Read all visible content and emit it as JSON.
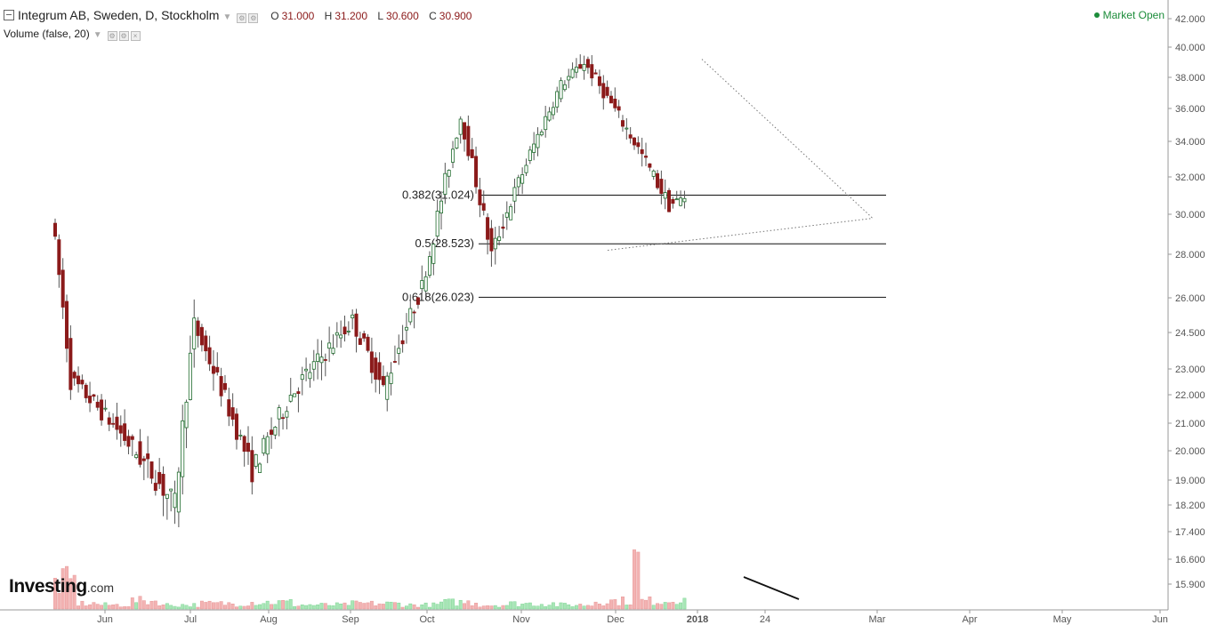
{
  "header": {
    "title": "Integrum AB, Sweden, D, Stockholm",
    "ohlc": [
      {
        "k": "O",
        "v": "31.000"
      },
      {
        "k": "H",
        "v": "31.200"
      },
      {
        "k": "L",
        "v": "30.600"
      },
      {
        "k": "C",
        "v": "30.900"
      }
    ],
    "volume_label": "Volume (false, 20)",
    "market_status": "Market Open",
    "colors": {
      "up": "#1e6b2c",
      "down": "#8b1a1a",
      "vol_up": "#a8e6b6",
      "vol_down": "#f3b3b3",
      "status": "#1c8c3a"
    }
  },
  "logo": {
    "name": "Investing",
    "suffix": ".com"
  },
  "chart_data": {
    "type": "candlestick",
    "x_ticks": [
      "Jun",
      "Jul",
      "Aug",
      "Sep",
      "Oct",
      "Nov",
      "Dec",
      "2018",
      "24",
      "Mar",
      "Apr",
      "May",
      "Jun"
    ],
    "y_ticks": [
      "42.000",
      "40.000",
      "38.000",
      "36.000",
      "34.000",
      "32.000",
      "30.000",
      "28.000",
      "26.000",
      "24.500",
      "23.000",
      "22.000",
      "21.000",
      "20.000",
      "19.000",
      "18.200",
      "17.400",
      "16.600",
      "15.900"
    ],
    "fib_levels": [
      {
        "label": "0.382(31.024)",
        "value": 31.024
      },
      {
        "label": "0.5(28.523)",
        "value": 28.523
      },
      {
        "label": "0.618(26.023)",
        "value": 26.023
      }
    ],
    "last_close": 30.9,
    "candle_segments": [
      [
        30.0,
        22.6,
        5,
        -0.35,
        0.9
      ],
      [
        22.6,
        20.8,
        12,
        -0.08,
        0.65
      ],
      [
        20.8,
        18.2,
        15,
        -0.2,
        0.8
      ],
      [
        18.2,
        24.8,
        5,
        0.3,
        0.9
      ],
      [
        24.8,
        19.3,
        15,
        -0.12,
        0.75
      ],
      [
        19.3,
        22.0,
        10,
        0.03,
        0.75
      ],
      [
        22.0,
        23.5,
        8,
        0.05,
        0.8
      ],
      [
        23.5,
        25.0,
        8,
        0.06,
        0.8
      ],
      [
        25.0,
        22.2,
        8,
        -0.05,
        0.8
      ],
      [
        22.2,
        26.5,
        10,
        0.04,
        0.8
      ],
      [
        26.5,
        28.0,
        2,
        0.5,
        0.6
      ],
      [
        28.0,
        35.5,
        8,
        0.1,
        0.95
      ],
      [
        35.5,
        28.0,
        8,
        -0.15,
        0.95
      ],
      [
        28.0,
        37.5,
        18,
        0.08,
        0.85
      ],
      [
        37.5,
        39.0,
        6,
        0.05,
        0.75
      ],
      [
        39.0,
        30.5,
        22,
        -0.05,
        0.85
      ],
      [
        30.5,
        30.9,
        4,
        0.01,
        0.6
      ]
    ],
    "volume_profile": [
      [
        6,
        40
      ],
      [
        6,
        8
      ],
      [
        8,
        6
      ],
      [
        8,
        12
      ],
      [
        10,
        6
      ],
      [
        12,
        8
      ],
      [
        12,
        10
      ],
      [
        14,
        6
      ],
      [
        14,
        8
      ],
      [
        10,
        6
      ],
      [
        10,
        10
      ],
      [
        8,
        6
      ],
      [
        12,
        8
      ],
      [
        10,
        6
      ],
      [
        10,
        12
      ],
      [
        2,
        70
      ],
      [
        8,
        12
      ],
      [
        10,
        16
      ],
      [
        8,
        24
      ],
      [
        6,
        40
      ],
      [
        8,
        28
      ],
      [
        10,
        20
      ],
      [
        14,
        22
      ],
      [
        12,
        18
      ],
      [
        10,
        14
      ],
      [
        6,
        10
      ]
    ],
    "trendlines": [
      {
        "from": [
          "2017-12-22",
          39.2
        ],
        "to": [
          "2018-03-01",
          29.8
        ],
        "style": "dotted"
      },
      {
        "from": [
          "2017-11-24",
          28.2
        ],
        "to": [
          "2018-03-01",
          29.8
        ],
        "style": "dotted"
      }
    ],
    "volume_trendline": {
      "from": "2018-01-10",
      "to": "2018-01-30",
      "style": "solid"
    }
  }
}
